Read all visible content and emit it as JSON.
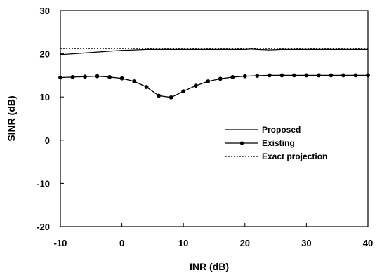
{
  "chart_data": {
    "type": "line",
    "xlabel": "INR (dB)",
    "ylabel": "SINR (dB)",
    "xlim": [
      -10,
      40
    ],
    "ylim": [
      -20,
      30
    ],
    "xticks": [
      -10,
      0,
      10,
      20,
      30,
      40
    ],
    "yticks": [
      -20,
      -10,
      0,
      10,
      20,
      30
    ],
    "grid": false,
    "legend_position": "center-right",
    "series": [
      {
        "name": "Proposed",
        "style": "solid",
        "markers": false,
        "color": "#000000",
        "x": [
          -10,
          -8,
          -6,
          -4,
          -2,
          0,
          2,
          4,
          6,
          8,
          10,
          12,
          14,
          16,
          18,
          20,
          21,
          22,
          24,
          26,
          28,
          30,
          32,
          34,
          36,
          38,
          40
        ],
        "y": [
          19.8,
          20.0,
          20.2,
          20.4,
          20.6,
          20.8,
          20.9,
          21.0,
          21.0,
          21.0,
          21.0,
          21.0,
          21.0,
          21.0,
          21.0,
          21.0,
          21.1,
          21.0,
          20.9,
          21.0,
          21.0,
          21.0,
          21.0,
          21.0,
          21.0,
          21.0,
          21.0
        ]
      },
      {
        "name": "Existing",
        "style": "solid",
        "markers": true,
        "color": "#000000",
        "x": [
          -10,
          -8,
          -6,
          -4,
          -2,
          0,
          2,
          4,
          6,
          8,
          10,
          12,
          14,
          16,
          18,
          20,
          22,
          24,
          26,
          28,
          30,
          32,
          34,
          36,
          38,
          40
        ],
        "y": [
          14.5,
          14.6,
          14.7,
          14.8,
          14.6,
          14.3,
          13.6,
          12.3,
          10.3,
          9.9,
          11.3,
          12.6,
          13.6,
          14.2,
          14.6,
          14.8,
          14.9,
          15.0,
          15.0,
          15.0,
          15.0,
          15.0,
          15.0,
          15.0,
          15.0,
          15.0
        ]
      },
      {
        "name": "Exact projection",
        "style": "dotted",
        "markers": false,
        "color": "#000000",
        "x": [
          -10,
          40
        ],
        "y": [
          21.2,
          21.2
        ]
      }
    ]
  }
}
